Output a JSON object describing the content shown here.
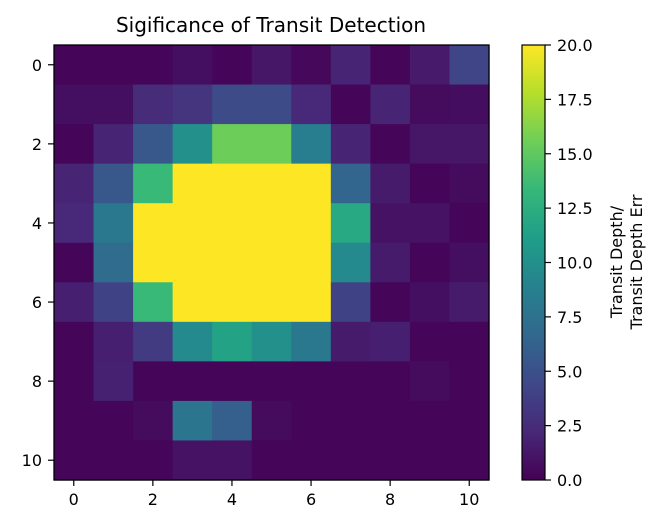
{
  "chart_data": {
    "type": "heatmap",
    "title": "Sigificance of Transit Detection",
    "x_ticks": [
      "0",
      "2",
      "4",
      "6",
      "8",
      "10"
    ],
    "y_ticks": [
      "0",
      "2",
      "4",
      "6",
      "8",
      "10"
    ],
    "x_range": [
      -0.5,
      10.5
    ],
    "y_range": [
      10.5,
      -0.5
    ],
    "colorbar": {
      "label_lines": [
        "Transit Depth/",
        "Transit Depth Err"
      ],
      "vmin": 0,
      "vmax": 20,
      "ticks": [
        "0.0",
        "2.5",
        "5.0",
        "7.5",
        "10.0",
        "12.5",
        "15.0",
        "17.5",
        "20.0"
      ],
      "colormap": "viridis"
    },
    "values": [
      [
        0.3,
        0.3,
        0.3,
        0.8,
        0.3,
        1.2,
        0.4,
        2.0,
        0.3,
        1.4,
        4.2
      ],
      [
        0.8,
        0.8,
        2.5,
        3.0,
        4.6,
        4.6,
        2.2,
        0.3,
        2.0,
        0.6,
        0.7
      ],
      [
        0.3,
        2.0,
        5.5,
        10.0,
        15.5,
        15.5,
        8.5,
        2.0,
        0.3,
        1.2,
        1.2
      ],
      [
        2.0,
        5.5,
        13.5,
        20,
        20,
        20,
        20,
        6.5,
        1.5,
        0.3,
        0.6
      ],
      [
        2.2,
        8.0,
        20,
        20,
        20,
        20,
        20,
        12.0,
        1.0,
        1.0,
        0.3
      ],
      [
        0.3,
        7.0,
        20,
        20,
        20,
        20,
        20,
        9.5,
        1.5,
        0.3,
        0.8
      ],
      [
        1.7,
        4.0,
        13.5,
        20,
        20,
        20,
        20,
        4.0,
        0.3,
        0.8,
        1.5
      ],
      [
        0.3,
        1.7,
        3.5,
        9.5,
        11.5,
        10.0,
        8.0,
        1.5,
        1.7,
        0.3,
        0.3
      ],
      [
        0.3,
        1.8,
        0.3,
        0.3,
        0.3,
        0.3,
        0.3,
        0.3,
        0.3,
        0.6,
        0.3
      ],
      [
        0.3,
        0.3,
        0.6,
        7.8,
        6.0,
        0.6,
        0.3,
        0.3,
        0.3,
        0.3,
        0.3
      ],
      [
        0.3,
        0.3,
        0.3,
        1.0,
        1.0,
        0.3,
        0.3,
        0.3,
        0.3,
        0.3,
        0.3
      ]
    ]
  }
}
